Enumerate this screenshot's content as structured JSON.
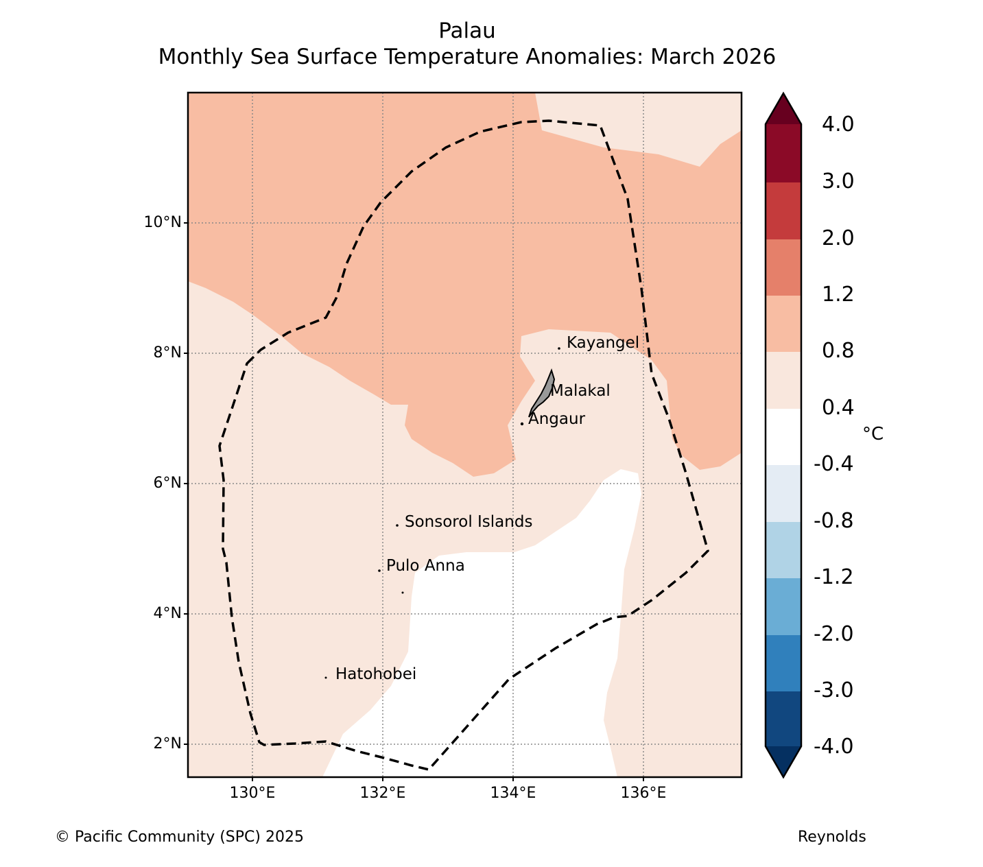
{
  "title": {
    "region": "Palau",
    "subtitle": "Monthly Sea Surface Temperature Anomalies: March 2026"
  },
  "map": {
    "lat_ticks": [
      "10°N",
      "8°N",
      "6°N",
      "4°N",
      "2°N"
    ],
    "lon_ticks": [
      "130°E",
      "132°E",
      "134°E",
      "136°E"
    ],
    "places": [
      "Kayangel",
      "Malakal",
      "Angaur",
      "Sonsorol Islands",
      "Pulo Anna",
      "Hatohobei"
    ],
    "boundary_style": "dashed",
    "fill_colors": {
      "anomaly_0_8_to_1_2": "#f8bda3",
      "anomaly_0_4_to_0_8": "#f9e7dd",
      "anomaly_neutral": "#ffffff",
      "land": "#999999"
    }
  },
  "colorbar": {
    "unit": "°C",
    "tick_labels": [
      "4.0",
      "3.0",
      "2.0",
      "1.2",
      "0.8",
      "0.4",
      "-0.4",
      "-0.8",
      "-1.2",
      "-2.0",
      "-3.0",
      "-4.0"
    ],
    "colors": [
      "#67001f",
      "#8b0a27",
      "#c43b3c",
      "#e5806a",
      "#f8bda3",
      "#f9e7dd",
      "#ffffff",
      "#e4ecf4",
      "#b0d3e6",
      "#6aadd5",
      "#3080bc",
      "#11477f",
      "#053061"
    ]
  },
  "footer": {
    "copyright": "© Pacific Community (SPC) 2025",
    "source": "Reynolds"
  }
}
